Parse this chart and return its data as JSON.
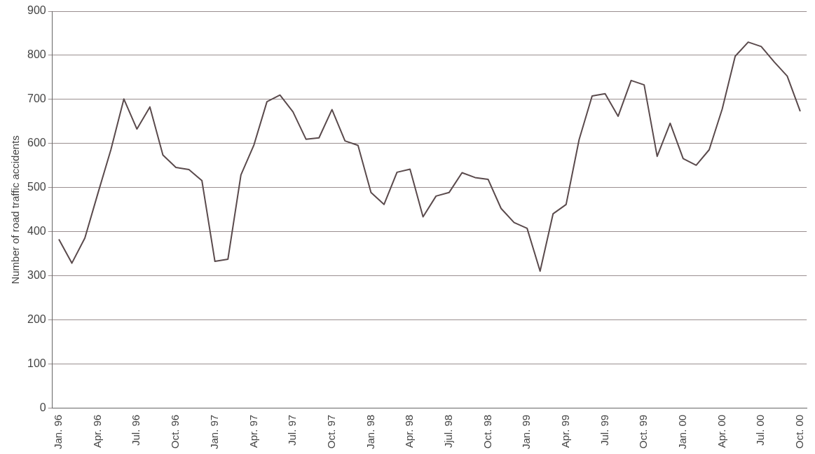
{
  "chart_data": {
    "type": "line",
    "ylabel": "Number of road traffic accidents",
    "categories": [
      "Jan. 96",
      null,
      null,
      "Apr. 96",
      null,
      null,
      "Jul. 96",
      null,
      null,
      "Oct. 96",
      null,
      null,
      "Jan. 97",
      null,
      null,
      "Apr. 97",
      null,
      null,
      "Jul. 97",
      null,
      null,
      "Oct. 97",
      null,
      null,
      "Jan. 98",
      null,
      null,
      "Apr. 98",
      null,
      null,
      "Jjul. 98",
      null,
      null,
      "Oct. 98",
      null,
      null,
      "Jan. 99",
      null,
      null,
      "Apr. 99",
      null,
      null,
      "Jul. 99",
      null,
      null,
      "Oct. 99",
      null,
      null,
      "Jan. 00",
      null,
      null,
      "Apr. 00",
      null,
      null,
      "Jul. 00",
      null,
      null,
      "Oct. 00"
    ],
    "series": [
      {
        "color": "#5a4a4c",
        "values": [
          383,
          329,
          386,
          487,
          586,
          701,
          633,
          683,
          574,
          546,
          541,
          516,
          333,
          338,
          529,
          597,
          695,
          710,
          672,
          610,
          613,
          677,
          606,
          596,
          489,
          462,
          535,
          542,
          434,
          481,
          489,
          534,
          523,
          519,
          453,
          421,
          408,
          311,
          441,
          462,
          609,
          708,
          713,
          662,
          743,
          733,
          571,
          646,
          566,
          551,
          586,
          678,
          798,
          830,
          820,
          785,
          753,
          673
        ]
      }
    ],
    "ylim": [
      0,
      900
    ],
    "yticks": [
      0,
      100,
      200,
      300,
      400,
      500,
      600,
      700,
      800,
      900
    ],
    "grid": "y",
    "legend": false,
    "marker": "none",
    "line_style": "solid"
  }
}
